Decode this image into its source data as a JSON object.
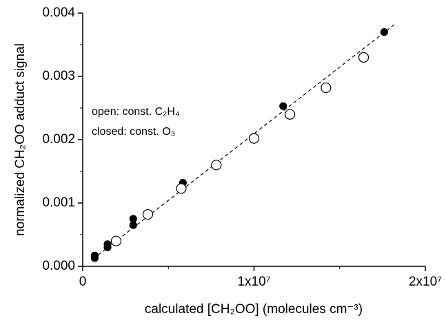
{
  "chart_data": {
    "type": "scatter",
    "xlabel": "calculated [CH₂OO]  (molecules cm⁻³)",
    "ylabel": "normalized CH₂OO adduct signal",
    "annotations": [
      "open: const. C₂H₄",
      "closed: const. O₃"
    ],
    "xlim": [
      0,
      20000000
    ],
    "ylim": [
      0,
      0.004
    ],
    "xticks": [
      {
        "value": 0,
        "label": "0"
      },
      {
        "value": 10000000,
        "label": "1x10⁷"
      },
      {
        "value": 20000000,
        "label": "2x10⁷"
      }
    ],
    "yticks": [
      {
        "value": 0,
        "label": "0.000"
      },
      {
        "value": 0.001,
        "label": "0.001"
      },
      {
        "value": 0.002,
        "label": "0.002"
      },
      {
        "value": 0.003,
        "label": "0.003"
      },
      {
        "value": 0.004,
        "label": "0.004"
      }
    ],
    "xminor": [
      5000000,
      15000000
    ],
    "yminor": [
      0.0005,
      0.0015,
      0.0025,
      0.0035
    ],
    "series": [
      {
        "color": "#000000",
        "filled": true,
        "x": [
          700000,
          700000,
          1450000,
          1450000,
          2950000,
          2950000,
          5850000,
          11700000,
          17600000
        ],
        "values": [
          0.00017,
          0.00013,
          0.00035,
          0.0003,
          0.00075,
          0.00065,
          0.00132,
          0.00253,
          0.0037
        ]
      },
      {
        "color": "#000000",
        "filled": false,
        "x": [
          1950000,
          3800000,
          5750000,
          7800000,
          10000000,
          12100000,
          14200000,
          16400000
        ],
        "values": [
          0.0004,
          0.00082,
          0.00123,
          0.0016,
          0.00202,
          0.0024,
          0.00282,
          0.0033
        ]
      }
    ],
    "fit": {
      "x": [
        600000,
        18200000
      ],
      "values": [
        0.000116,
        0.00382
      ],
      "color": "#000000",
      "dash": true
    }
  }
}
